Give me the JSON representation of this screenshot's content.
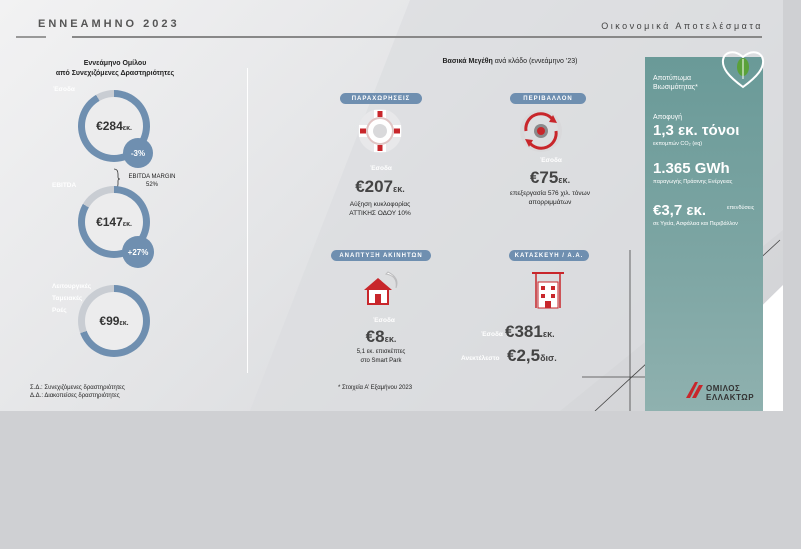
{
  "header": {
    "left_title": "ΕΝΝΕΑΜΗΝΟ 2023",
    "right_title": "Οικονομικά Αποτελέσματα"
  },
  "group": {
    "title_line1": "Εννεάμηνο Ομίλου",
    "title_line2": "από Συνεχιζόμενες Δραστηριότητες",
    "revenue": {
      "label": "Έσοδα",
      "value": "€284",
      "unit": "εκ.",
      "delta": "-3%"
    },
    "ebitda": {
      "label": "EBITDA",
      "value": "€147",
      "unit": "εκ.",
      "delta": "+27%",
      "margin_label": "EBITDA MARGIN",
      "margin_value": "52%"
    },
    "ops": {
      "label_line1": "Λειτουργικές",
      "label_line2": "Ταμειακές",
      "label_line3": "Ροές",
      "value": "€99",
      "unit": "εκ."
    },
    "notes": [
      "Σ.Δ.: Συνεχιζόμενες δραστηριότητες",
      "Δ.Δ.: Διακοπείσες δραστηριότητες"
    ]
  },
  "segments": {
    "title_bold": "Βασικά Μεγέθη",
    "title_rest": " ανά κλάδο (εννεάμηνο ’23)",
    "concessions": {
      "pill": "ΠΑΡΑΧΩΡΗΣΕΙΣ",
      "label": "Έσοδα",
      "value": "€207",
      "unit": "εκ.",
      "desc_line1": "Αύξηση κυκλοφορίας",
      "desc_line2": "ΑΤΤΙΚΗΣ ΟΔΟΥ 10%",
      "icon": "roundabout-icon"
    },
    "environment": {
      "pill": "ΠΕΡΙΒΑΛΛΟΝ",
      "label": "Έσοδα",
      "value": "€75",
      "unit": "εκ.",
      "desc_line1": "επεξεργασία 576 χιλ. τόνων",
      "desc_line2": "απορριμμάτων",
      "icon": "recycling-icon"
    },
    "real_estate": {
      "pill": "ΑΝΑΠΤΥΞΗ ΑΚΙΝΗΤΩΝ",
      "label": "Έσοδα",
      "value": "€8",
      "unit": "εκ.",
      "desc_line1": "5,1 εκ. επισκέπτες",
      "desc_line2": "στο Smart Park",
      "icon": "house-icon"
    },
    "construction": {
      "pill": "ΚΑΤΑΣΚΕΥΗ / Α.Α.",
      "rev_label": "Έσοδα",
      "rev_value": "€381",
      "rev_unit": "εκ.",
      "backlog_label": "Ανεκτέλεστο",
      "backlog_value": "€2,5",
      "backlog_unit": "δισ.",
      "icon": "construction-icon"
    },
    "footnote": "* Στοιχεία Α’ Εξαμήνου 2023"
  },
  "sustainability": {
    "title_line1": "Αποτύπωμα",
    "title_line2": "Βιωσιμότητας*",
    "avoid_label": "Αποφυγή",
    "co2_value": "1,3 εκ. τόνοι",
    "co2_desc": "εκπομπών CO₂ (eq)",
    "energy_value": "1.365 GWh",
    "energy_desc": "παραγωγής Πράσινης Ενέργειας",
    "invest_value": "€3,7 εκ.",
    "invest_desc_line1": "επενδύσεις",
    "invest_desc_line2": "σε Υγεία, Ασφάλεια και Περιβάλλον",
    "icon": "leaf-heart-icon"
  },
  "logo": {
    "line1": "ΟΜΙΛΟΣ",
    "line2": "ΕΛΛΑΚΤΩΡ"
  },
  "colors": {
    "accent_blue": "#6f8fb0",
    "teal_panel": "#6a9a98",
    "brand_red": "#c8262b"
  }
}
